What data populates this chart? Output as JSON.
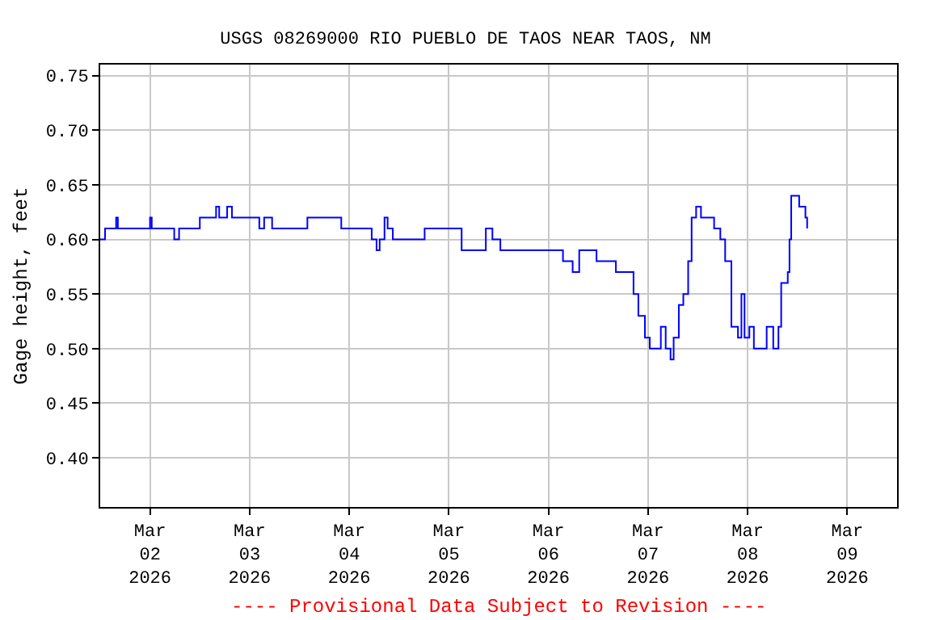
{
  "chart_data": {
    "type": "step",
    "title": "USGS 08269000 RIO PUEBLO DE TAOS NEAR TAOS, NM",
    "ylabel": "Gage height, feet",
    "annotations": [
      "---- Provisional Data Subject to Revision ----"
    ],
    "xlim": [
      "2026-03-01T12:00",
      "2026-03-09T12:00"
    ],
    "xticks": [
      {
        "value": "2026-03-02",
        "label": "Mar\n02\n2026"
      },
      {
        "value": "2026-03-03",
        "label": "Mar\n03\n2026"
      },
      {
        "value": "2026-03-04",
        "label": "Mar\n04\n2026"
      },
      {
        "value": "2026-03-05",
        "label": "Mar\n05\n2026"
      },
      {
        "value": "2026-03-06",
        "label": "Mar\n06\n2026"
      },
      {
        "value": "2026-03-07",
        "label": "Mar\n07\n2026"
      },
      {
        "value": "2026-03-08",
        "label": "Mar\n08\n2026"
      },
      {
        "value": "2026-03-09",
        "label": "Mar\n09\n2026"
      }
    ],
    "ylim": [
      0.355,
      0.76
    ],
    "yticks": [
      {
        "value": 0.4,
        "label": "0.40"
      },
      {
        "value": 0.45,
        "label": "0.45"
      },
      {
        "value": 0.5,
        "label": "0.50"
      },
      {
        "value": 0.55,
        "label": "0.55"
      },
      {
        "value": 0.6,
        "label": "0.60"
      },
      {
        "value": 0.65,
        "label": "0.65"
      },
      {
        "value": 0.7,
        "label": "0.70"
      },
      {
        "value": 0.75,
        "label": "0.75"
      }
    ],
    "grid": true,
    "marker": "none",
    "line_style": "solid",
    "series": [
      {
        "color": "#0000ff",
        "x": [
          "2026-03-01T12:00",
          "2026-03-01T13:10",
          "2026-03-01T15:30",
          "2026-03-01T15:50",
          "2026-03-01T16:15",
          "2026-03-01T23:35",
          "2026-03-02T00:00",
          "2026-03-02T00:25",
          "2026-03-02T05:25",
          "2026-03-02T05:50",
          "2026-03-02T07:00",
          "2026-03-02T11:15",
          "2026-03-02T12:00",
          "2026-03-02T13:55",
          "2026-03-02T15:55",
          "2026-03-02T16:40",
          "2026-03-02T18:35",
          "2026-03-02T19:45",
          "2026-03-03T01:30",
          "2026-03-03T02:20",
          "2026-03-03T03:30",
          "2026-03-03T05:25",
          "2026-03-03T13:10",
          "2026-03-03T13:55",
          "2026-03-03T20:55",
          "2026-03-03T22:05",
          "2026-03-04T03:30",
          "2026-03-04T05:25",
          "2026-03-04T06:35",
          "2026-03-04T07:20",
          "2026-03-04T08:30",
          "2026-03-04T09:15",
          "2026-03-04T10:30",
          "2026-03-04T18:10",
          "2026-03-05T01:55",
          "2026-03-05T03:05",
          "2026-03-05T07:45",
          "2026-03-05T08:55",
          "2026-03-05T10:30",
          "2026-03-05T12:25",
          "2026-03-05T17:25",
          "2026-03-06T02:40",
          "2026-03-06T03:30",
          "2026-03-06T05:50",
          "2026-03-06T07:25",
          "2026-03-06T11:35",
          "2026-03-06T15:30",
          "2026-03-06T16:15",
          "2026-03-06T19:00",
          "2026-03-06T20:30",
          "2026-03-06T21:40",
          "2026-03-06T23:15",
          "2026-03-07T00:25",
          "2026-03-07T02:20",
          "2026-03-07T03:05",
          "2026-03-07T04:15",
          "2026-03-07T05:25",
          "2026-03-07T06:10",
          "2026-03-07T07:25",
          "2026-03-07T08:30",
          "2026-03-07T09:40",
          "2026-03-07T10:30",
          "2026-03-07T11:35",
          "2026-03-07T12:45",
          "2026-03-07T15:55",
          "2026-03-07T17:25",
          "2026-03-07T18:35",
          "2026-03-07T20:05",
          "2026-03-07T21:40",
          "2026-03-07T22:30",
          "2026-03-07T23:15",
          "2026-03-08T00:25",
          "2026-03-08T01:30",
          "2026-03-08T03:30",
          "2026-03-08T04:35",
          "2026-03-08T06:10",
          "2026-03-08T07:25",
          "2026-03-08T08:05",
          "2026-03-08T09:40",
          "2026-03-08T10:05",
          "2026-03-08T10:30",
          "2026-03-08T12:25",
          "2026-03-08T13:55",
          "2026-03-08T14:20"
        ],
        "values": [
          0.6,
          0.61,
          0.61,
          0.62,
          0.61,
          0.61,
          0.62,
          0.61,
          0.61,
          0.6,
          0.61,
          0.61,
          0.62,
          0.62,
          0.63,
          0.62,
          0.63,
          0.62,
          0.62,
          0.61,
          0.62,
          0.61,
          0.61,
          0.62,
          0.62,
          0.61,
          0.61,
          0.6,
          0.59,
          0.6,
          0.62,
          0.61,
          0.6,
          0.61,
          0.61,
          0.59,
          0.59,
          0.61,
          0.6,
          0.59,
          0.59,
          0.59,
          0.58,
          0.57,
          0.59,
          0.58,
          0.58,
          0.57,
          0.57,
          0.55,
          0.53,
          0.51,
          0.5,
          0.5,
          0.52,
          0.5,
          0.49,
          0.51,
          0.54,
          0.55,
          0.58,
          0.62,
          0.63,
          0.62,
          0.61,
          0.6,
          0.58,
          0.52,
          0.51,
          0.55,
          0.51,
          0.52,
          0.5,
          0.5,
          0.52,
          0.5,
          0.52,
          0.56,
          0.57,
          0.6,
          0.64,
          0.63,
          0.62,
          0.61
        ]
      }
    ]
  }
}
